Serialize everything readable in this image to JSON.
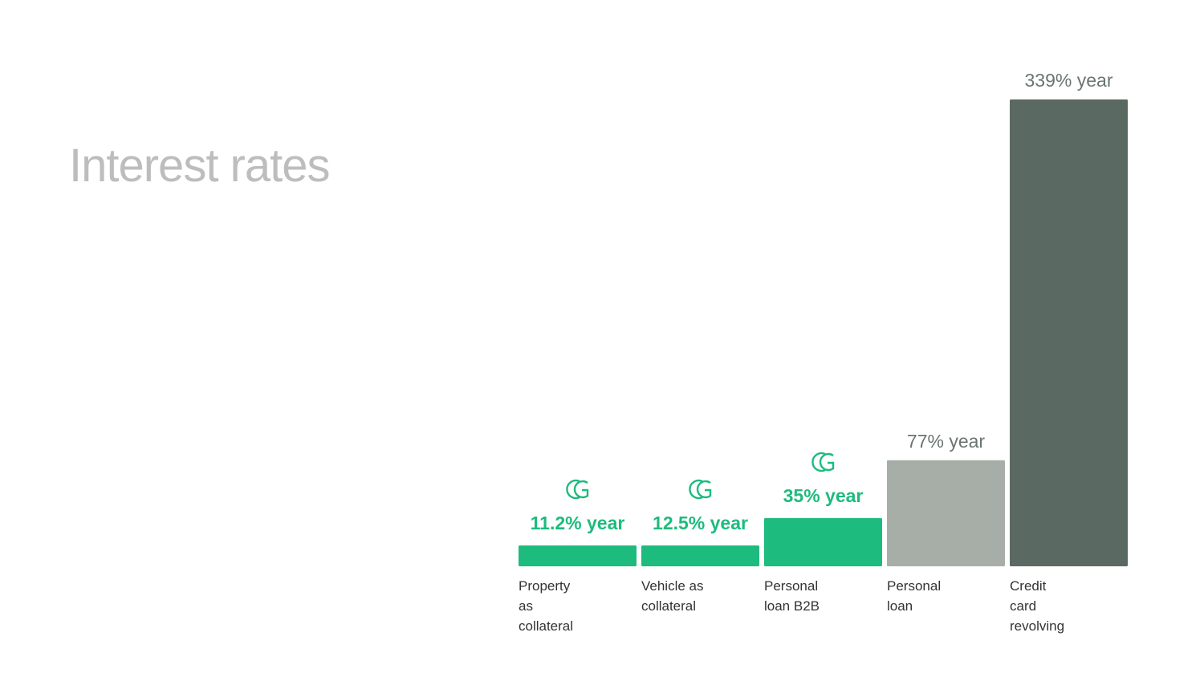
{
  "page": {
    "title": "Interest rates"
  },
  "colors": {
    "brand": "#1dbb7d",
    "competitor_light": "#a6aea7",
    "competitor_dark": "#5a6a62",
    "label_grey": "#6b7570"
  },
  "chart_data": {
    "type": "bar",
    "categories": [
      "Property as collateral",
      "Vehicle as collateral",
      "Personal loan B2B",
      "Personal loan",
      "Credit card revolving"
    ],
    "category_lines": [
      [
        "Property",
        "as",
        "collateral"
      ],
      [
        "Vehicle as",
        "collateral"
      ],
      [
        "Personal",
        "loan B2B"
      ],
      [
        "Personal",
        "loan"
      ],
      [
        "Credit",
        "card",
        "revolving"
      ]
    ],
    "values": [
      11.2,
      12.5,
      35,
      77,
      339
    ],
    "value_labels": [
      "11.2% year",
      "12.5% year",
      "35% year",
      "77% year",
      "339% year"
    ],
    "brand_logo": [
      true,
      true,
      true,
      false,
      false
    ],
    "bar_colors": [
      "#1dbb7d",
      "#1dbb7d",
      "#1dbb7d",
      "#a6aea7",
      "#5a6a62"
    ],
    "label_colors": [
      "#1dbb7d",
      "#1dbb7d",
      "#1dbb7d",
      "#6b7570",
      "#6b7570"
    ],
    "ylim": [
      0,
      339
    ],
    "grid": false,
    "legend": "none",
    "xlabel": "",
    "ylabel": ""
  }
}
